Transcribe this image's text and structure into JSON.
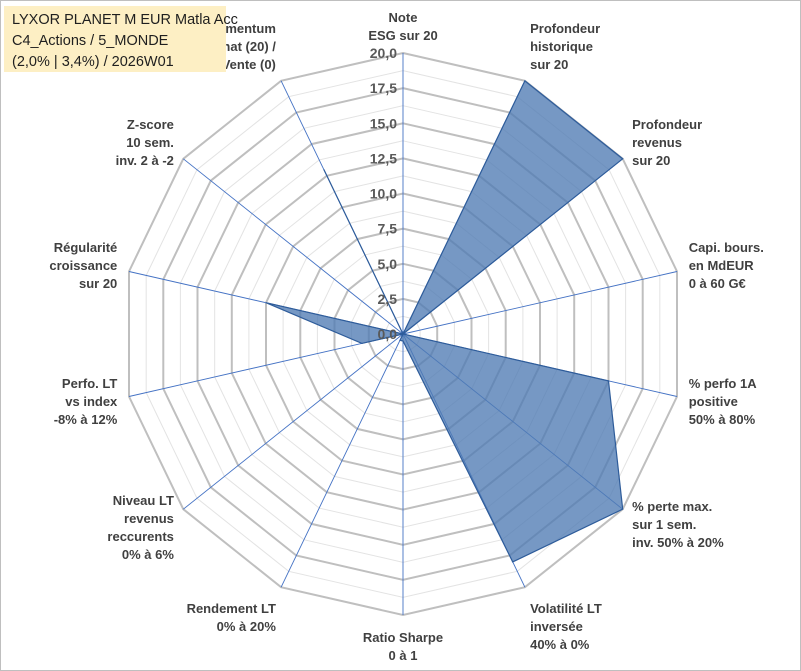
{
  "title_box": {
    "line1": "LYXOR PLANET M EUR Matla Acc",
    "line2": "C4_Actions / 5_MONDE",
    "line3": "(2,0% | 3,4%) / 2026W01"
  },
  "colors": {
    "fill": "#4f7bb4",
    "stroke": "#2e5c9a",
    "spoke": "#4472c4",
    "grid_major": "#bfbfbf",
    "grid_minor": "#e3e3e3",
    "title_bg": "#fdefc4"
  },
  "chart_data": {
    "type": "radar",
    "title": "",
    "rmin": 0,
    "rmax": 20,
    "major_step": 2.5,
    "minor_step": 1.25,
    "ticks": [
      "0,0",
      "2,5",
      "5,0",
      "7,5",
      "10,0",
      "12,5",
      "15,0",
      "17,5",
      "20,0"
    ],
    "axes": [
      [
        "Note",
        "ESG sur 20"
      ],
      [
        "Profondeur",
        "historique",
        "sur 20"
      ],
      [
        "Profondeur",
        "revenus",
        "sur 20"
      ],
      [
        "Capi. bours.",
        "en MdEUR",
        "0 à 60 G€"
      ],
      [
        "% perfo 1A",
        "positive",
        "50% à 80%"
      ],
      [
        "% perte max.",
        "sur 1 sem.",
        "inv. 50% à 20%"
      ],
      [
        "Volatilité LT",
        "inversée",
        "40% à 0%"
      ],
      [
        "Ratio Sharpe",
        "0 à 1"
      ],
      [
        "Rendement LT",
        "0% à 20%"
      ],
      [
        "Niveau LT",
        "revenus",
        "reccurents",
        "0% à 6%"
      ],
      [
        "Perfo. LT",
        "vs index",
        "-8% à 12%"
      ],
      [
        "Régularité",
        "croissance",
        "sur 20"
      ],
      [
        "Z-score",
        "10 sem.",
        "inv. 2 à -2"
      ],
      [
        "Momentum",
        "Achat (20) /",
        "Vente (0)"
      ]
    ],
    "series": [
      {
        "values": [
          0,
          20,
          20,
          0,
          15,
          20,
          18,
          0.5,
          0.5,
          0,
          3,
          10,
          0,
          13
        ]
      }
    ]
  }
}
